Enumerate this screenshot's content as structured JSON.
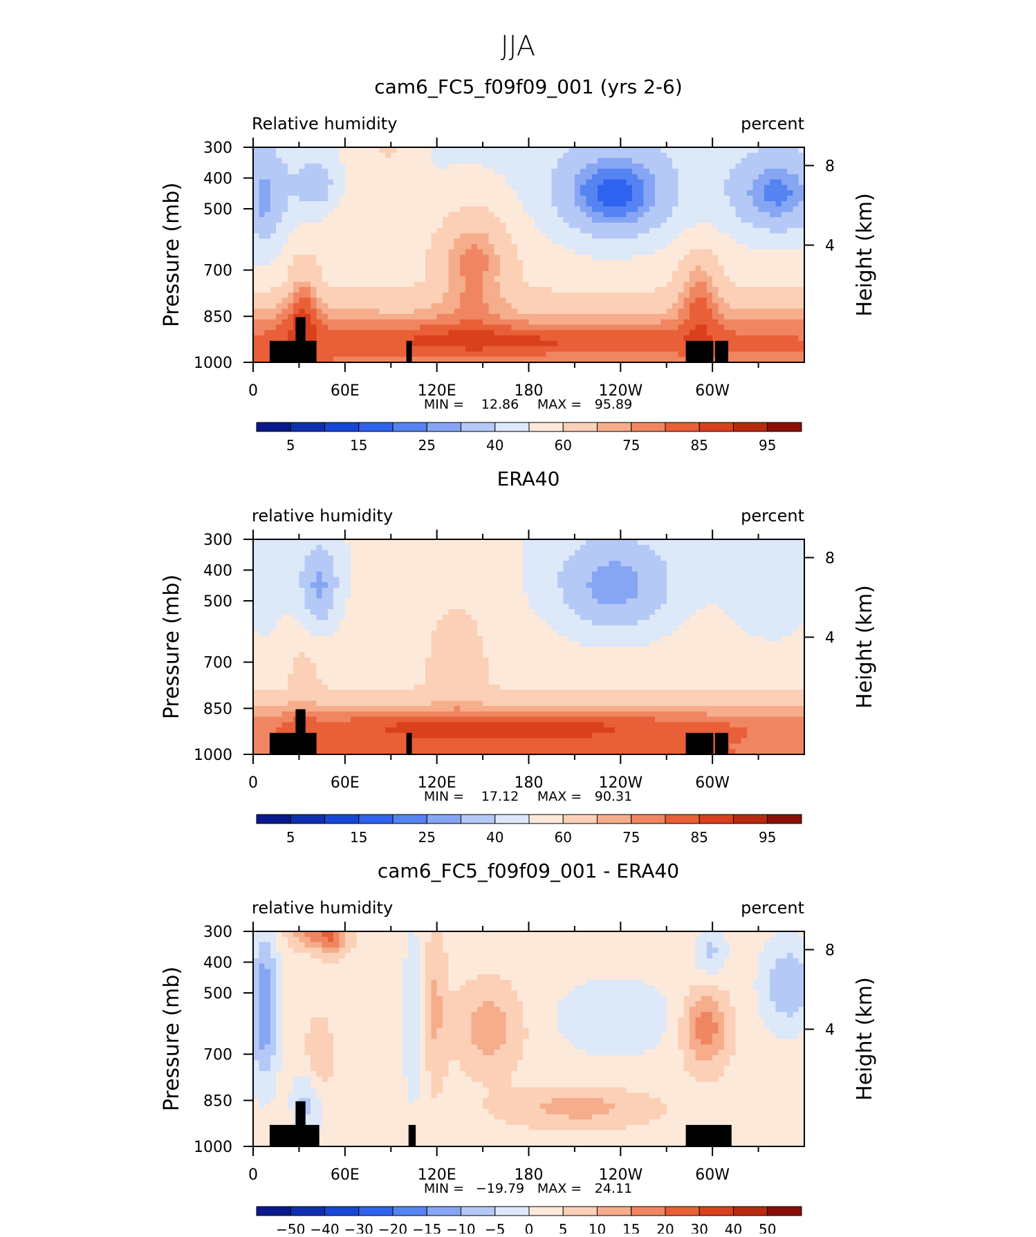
{
  "figure": {
    "title": "JJA"
  },
  "colorbar_colors": [
    "#0a1a8c",
    "#0f2fb0",
    "#1646d6",
    "#2f62ef",
    "#5583f2",
    "#86a6f4",
    "#b5c9f6",
    "#dde8f9",
    "#fde9d9",
    "#fbd0b6",
    "#f5ad8c",
    "#f08661",
    "#e95f37",
    "#d9401d",
    "#b9290f",
    "#8a0f08"
  ],
  "chart_data": [
    {
      "type": "heatmap",
      "title": "cam6_FC5_f09f09_001 (yrs 2-6)",
      "left_label": "Relative humidity",
      "right_label": "percent",
      "ylabel": "Pressure (mb)",
      "ylabel_right": "Height (km)",
      "x_ticks": [
        "0",
        "60E",
        "120E",
        "180",
        "120W",
        "60W"
      ],
      "y_ticks": [
        "300",
        "400",
        "500",
        "700",
        "850",
        "1000"
      ],
      "y_ticks_right": [
        "8",
        "4"
      ],
      "stats": {
        "min_label": "MIN =",
        "min": "12.86",
        "max_label": "MAX =",
        "max": "95.89"
      },
      "colorbar_labels": [
        "5",
        "15",
        "25",
        "40",
        "60",
        "75",
        "85",
        "95"
      ],
      "field": "model"
    },
    {
      "type": "heatmap",
      "title": "ERA40",
      "left_label": "relative humidity",
      "right_label": "percent",
      "ylabel": "Pressure (mb)",
      "ylabel_right": "Height (km)",
      "x_ticks": [
        "0",
        "60E",
        "120E",
        "180",
        "120W",
        "60W"
      ],
      "y_ticks": [
        "300",
        "400",
        "500",
        "700",
        "850",
        "1000"
      ],
      "y_ticks_right": [
        "8",
        "4"
      ],
      "stats": {
        "min_label": "MIN =",
        "min": "17.12",
        "max_label": "MAX =",
        "max": "90.31"
      },
      "colorbar_labels": [
        "5",
        "15",
        "25",
        "40",
        "60",
        "75",
        "85",
        "95"
      ],
      "field": "obs"
    },
    {
      "type": "heatmap",
      "title": "cam6_FC5_f09f09_001 - ERA40",
      "left_label": "relative humidity",
      "right_label": "percent",
      "ylabel": "Pressure (mb)",
      "ylabel_right": "Height (km)",
      "x_ticks": [
        "0",
        "60E",
        "120E",
        "180",
        "120W",
        "60W"
      ],
      "y_ticks": [
        "300",
        "400",
        "500",
        "700",
        "850",
        "1000"
      ],
      "y_ticks_right": [
        "8",
        "4"
      ],
      "stats": {
        "min_label": "MIN =",
        "min": "−19.79",
        "max_label": "MAX =",
        "max": "24.11"
      },
      "colorbar_labels": [
        "−50",
        "−40",
        "−30",
        "−20",
        "−15",
        "−10",
        "−5",
        "0",
        "5",
        "10",
        "15",
        "20",
        "30",
        "40",
        "50"
      ],
      "field": "diff"
    }
  ]
}
